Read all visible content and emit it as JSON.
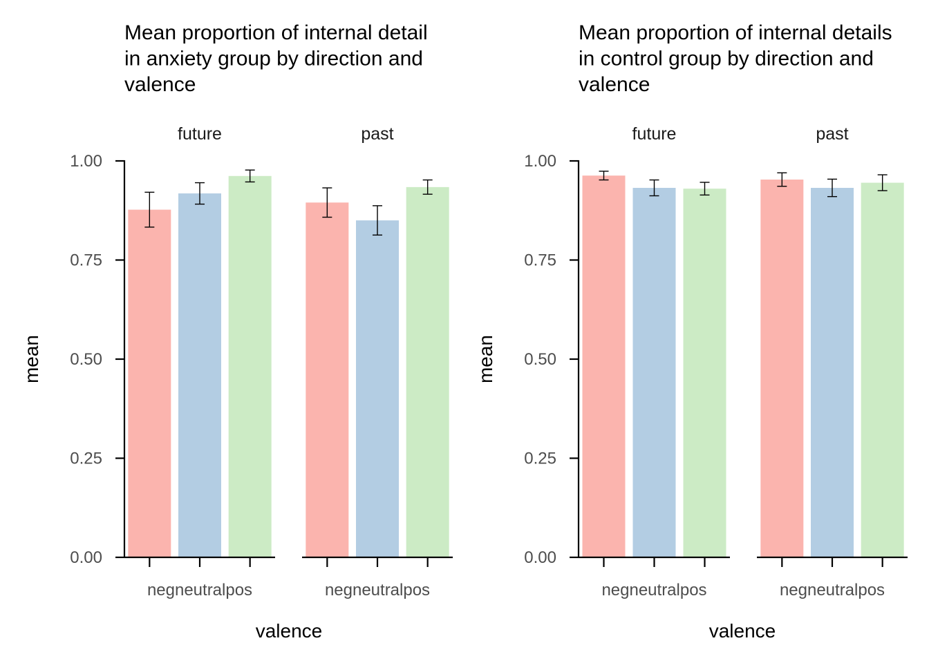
{
  "chart_data": [
    {
      "type": "bar",
      "title": "Mean proportion of internal detail\nin anxiety group by direction and\nvalence",
      "xlabel": "valence",
      "ylabel": "mean",
      "ylim": [
        0,
        1
      ],
      "yticks": [
        "0.00",
        "0.25",
        "0.50",
        "0.75",
        "1.00"
      ],
      "facets": [
        {
          "name": "future",
          "tick_label": "negneutralpos",
          "categories": [
            "neg",
            "neutral",
            "pos"
          ],
          "values": [
            0.877,
            0.918,
            0.962
          ],
          "err_low": [
            0.833,
            0.891,
            0.947
          ],
          "err_high": [
            0.921,
            0.945,
            0.977
          ]
        },
        {
          "name": "past",
          "tick_label": "negneutralpos",
          "categories": [
            "neg",
            "neutral",
            "pos"
          ],
          "values": [
            0.895,
            0.85,
            0.934
          ],
          "err_low": [
            0.858,
            0.813,
            0.916
          ],
          "err_high": [
            0.932,
            0.887,
            0.952
          ]
        }
      ],
      "colors": [
        "#fbb4ae",
        "#b3cde3",
        "#ccebc5"
      ],
      "grid": false,
      "legend": "none"
    },
    {
      "type": "bar",
      "title": "Mean proportion of internal details\nin control group by direction and\nvalence",
      "xlabel": "valence",
      "ylabel": "mean",
      "ylim": [
        0,
        1
      ],
      "yticks": [
        "0.00",
        "0.25",
        "0.50",
        "0.75",
        "1.00"
      ],
      "facets": [
        {
          "name": "future",
          "tick_label": "negneutralpos",
          "categories": [
            "neg",
            "neutral",
            "pos"
          ],
          "values": [
            0.963,
            0.932,
            0.93
          ],
          "err_low": [
            0.952,
            0.912,
            0.914
          ],
          "err_high": [
            0.974,
            0.952,
            0.946
          ]
        },
        {
          "name": "past",
          "tick_label": "negneutralpos",
          "categories": [
            "neg",
            "neutral",
            "pos"
          ],
          "values": [
            0.953,
            0.932,
            0.945
          ],
          "err_low": [
            0.936,
            0.91,
            0.925
          ],
          "err_high": [
            0.97,
            0.954,
            0.965
          ]
        }
      ],
      "colors": [
        "#fbb4ae",
        "#b3cde3",
        "#ccebc5"
      ],
      "grid": false,
      "legend": "none"
    }
  ]
}
